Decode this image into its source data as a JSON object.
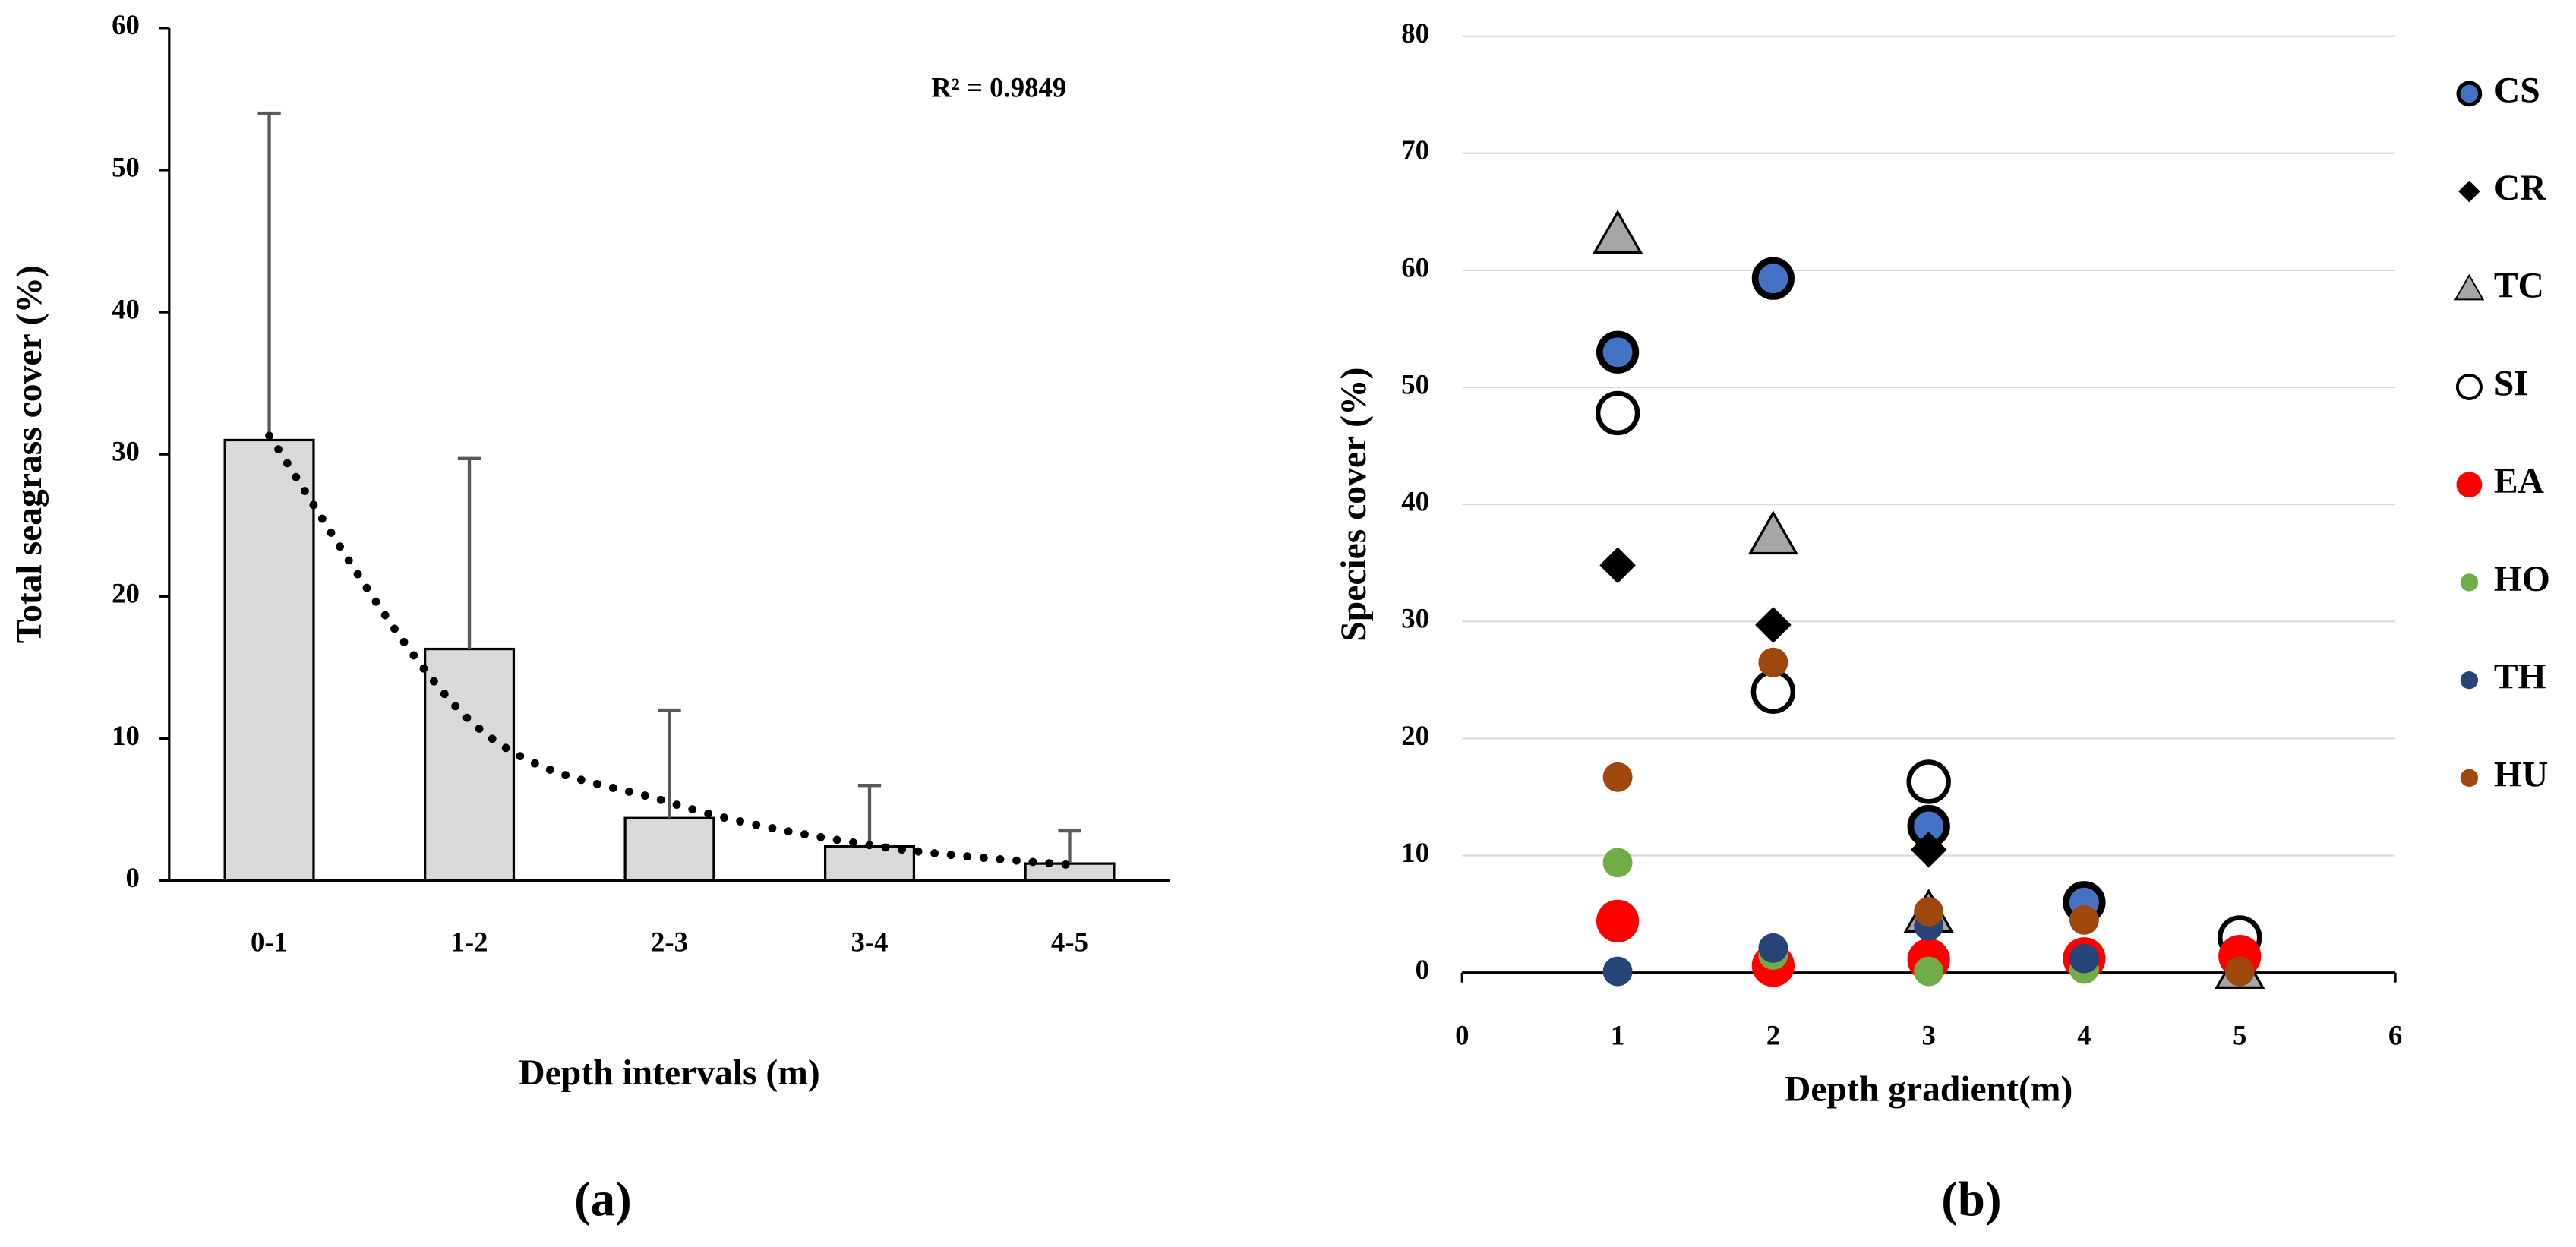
{
  "chart_data": [
    {
      "type": "bar",
      "x_label": "Depth intervals (m)",
      "y_label": "Total seagrass cover (%)",
      "caption": "(a)",
      "categories": [
        "0-1",
        "1-2",
        "2-3",
        "3-4",
        "4-5"
      ],
      "values": [
        31,
        16.3,
        4.4,
        2.4,
        1.2
      ],
      "errors": [
        23,
        13.4,
        7.6,
        4.3,
        2.3
      ],
      "color": "#d9d9d9",
      "trendline": {
        "values": [
          31.3,
          11.3,
          5.5,
          2.5,
          1.1
        ],
        "label": "R² = 0.9849"
      },
      "ylim": [
        0,
        60
      ],
      "yticks": [
        0,
        10,
        20,
        30,
        40,
        50,
        60
      ]
    },
    {
      "type": "scatter",
      "x_label": "Depth gradient(m)",
      "y_label": "Species cover (%)",
      "caption": "(b)",
      "x": [
        1,
        2,
        3,
        4,
        5
      ],
      "series": [
        {
          "name": "CS",
          "color": "#4472c4",
          "marker": "circle-outlined",
          "values": [
            53,
            59.3,
            12.5,
            6,
            null
          ]
        },
        {
          "name": "CR",
          "color": "#000000",
          "marker": "diamond",
          "values": [
            34.8,
            29.7,
            10.5,
            null,
            null
          ]
        },
        {
          "name": "TC",
          "color": "#a6a6a6",
          "marker": "triangle",
          "values": [
            63,
            37.3,
            5,
            null,
            0.2
          ]
        },
        {
          "name": "SI",
          "color": "#ffffff",
          "marker": "ring",
          "values": [
            47.8,
            24,
            16.3,
            null,
            3
          ]
        },
        {
          "name": "EA",
          "color": "#ff0000",
          "marker": "disc-large",
          "values": [
            4.4,
            0.6,
            1.1,
            1.2,
            1.4
          ]
        },
        {
          "name": "HO",
          "color": "#70ad47",
          "marker": "disc",
          "values": [
            9.4,
            1.5,
            0.1,
            0.3,
            null
          ]
        },
        {
          "name": "TH",
          "color": "#264478",
          "marker": "disc",
          "values": [
            0.1,
            2.1,
            4,
            1.2,
            null
          ]
        },
        {
          "name": "HU",
          "color": "#9e480e",
          "marker": "disc",
          "values": [
            16.7,
            26.5,
            5.2,
            4.5,
            0.1
          ]
        }
      ],
      "xlim": [
        0,
        6
      ],
      "xticks": [
        0,
        1,
        2,
        3,
        4,
        5,
        6
      ],
      "ylim": [
        0,
        80
      ],
      "yticks": [
        0,
        10,
        20,
        30,
        40,
        50,
        60,
        70,
        80
      ],
      "grid": true
    }
  ]
}
